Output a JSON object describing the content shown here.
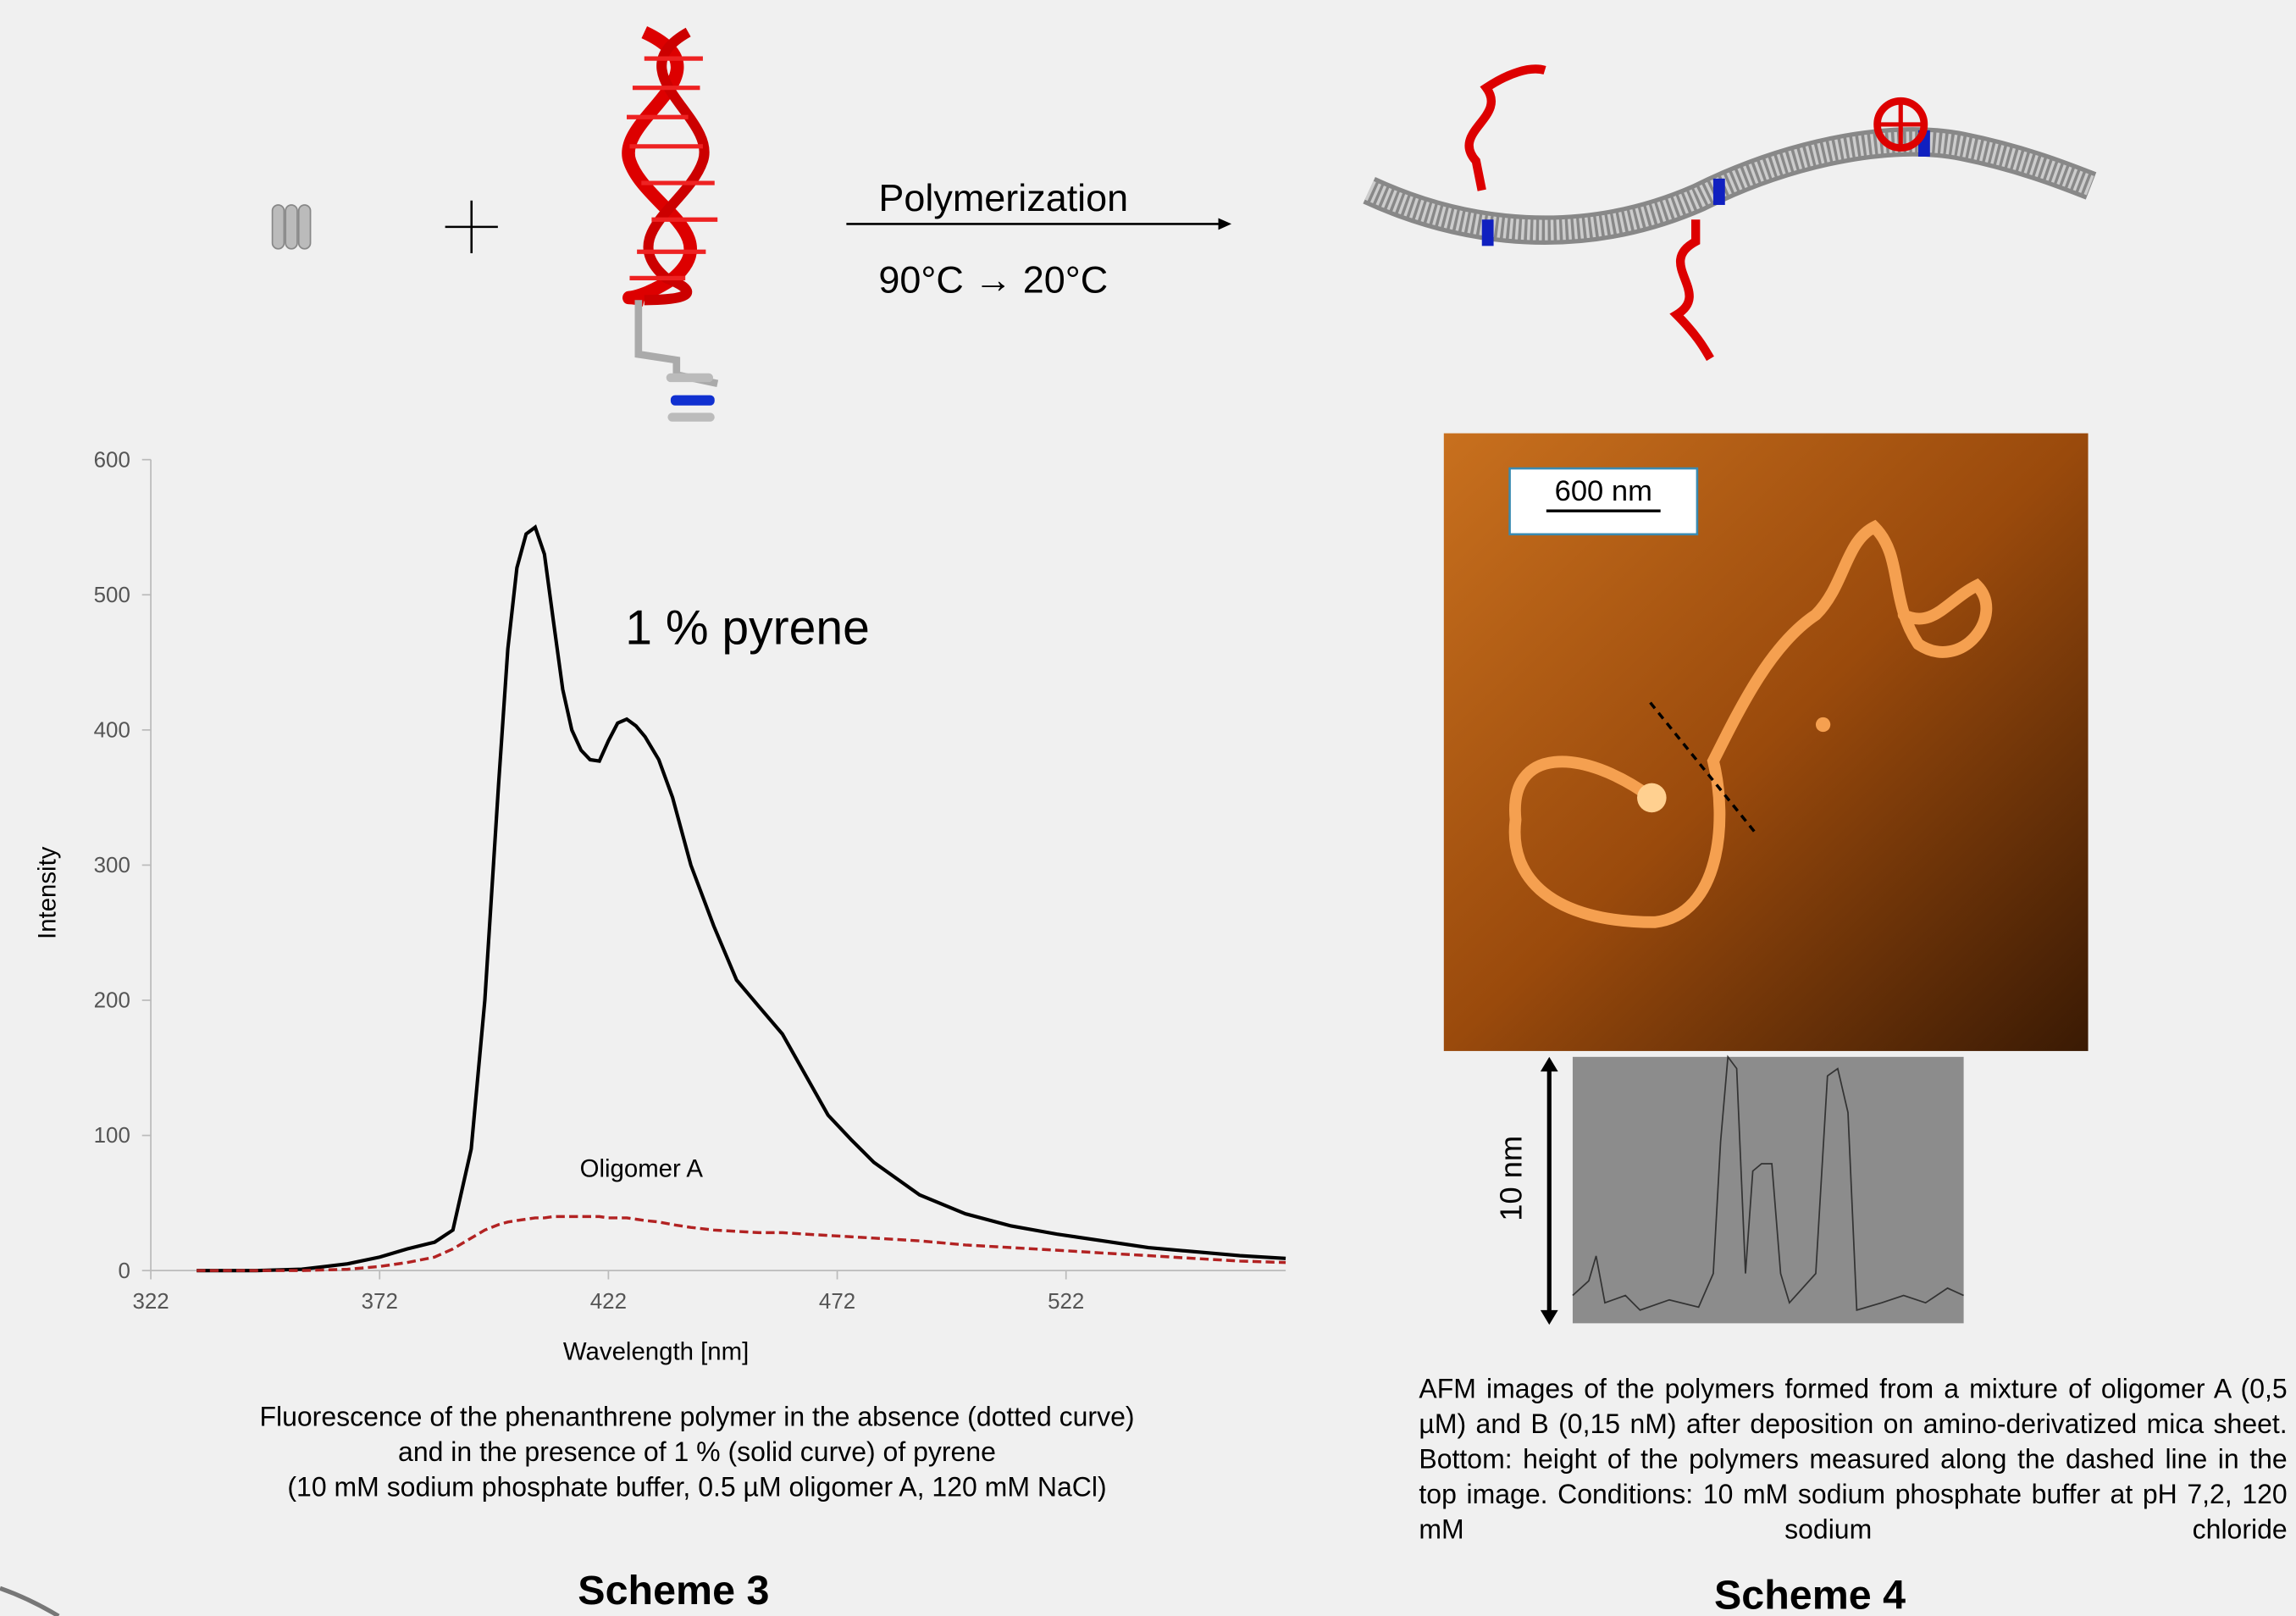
{
  "scheme": {
    "reaction": "Polymerization",
    "conditions": "90°C → 20°C"
  },
  "chart_data": {
    "type": "line",
    "xlabel": "Wavelength [nm]",
    "ylabel": "Intensity",
    "x": [
      332,
      345,
      355,
      365,
      372,
      378,
      384,
      388,
      392,
      395,
      398,
      400,
      402,
      404,
      406,
      408,
      410,
      412,
      414,
      416,
      418,
      420,
      422,
      424,
      426,
      428,
      430,
      433,
      436,
      440,
      445,
      450,
      455,
      460,
      465,
      470,
      475,
      480,
      490,
      500,
      510,
      520,
      530,
      540,
      550,
      560,
      570
    ],
    "series": [
      {
        "name": "1 % pyrene",
        "color": "#000000",
        "dashed": false,
        "values": [
          0,
          0,
          1,
          5,
          10,
          16,
          21,
          30,
          90,
          200,
          360,
          460,
          520,
          545,
          550,
          530,
          480,
          430,
          400,
          385,
          378,
          377,
          392,
          405,
          408,
          403,
          395,
          378,
          350,
          300,
          255,
          215,
          195,
          175,
          145,
          115,
          97,
          80,
          56,
          42,
          33,
          27,
          22,
          17,
          14,
          11,
          9
        ]
      },
      {
        "name": "Oligomer A",
        "color": "#b22222",
        "dashed": true,
        "values": [
          0,
          0,
          0,
          1,
          3,
          6,
          10,
          16,
          24,
          30,
          34,
          36,
          37,
          38,
          39,
          39,
          40,
          40,
          40,
          40,
          40,
          40,
          39,
          39,
          39,
          38,
          37,
          36,
          34,
          32,
          30,
          29,
          28,
          28,
          27,
          26,
          25,
          24,
          22,
          19,
          17,
          15,
          13,
          11,
          9,
          7,
          6
        ]
      }
    ],
    "xlim": [
      322,
      570
    ],
    "xticks": [
      322,
      372,
      422,
      472,
      522
    ],
    "ylim": [
      0,
      600
    ],
    "yticks": [
      0,
      100,
      200,
      300,
      400,
      500,
      600
    ]
  },
  "left_caption": [
    "Fluorescence of the phenanthrene polymer in the absence (dotted curve)",
    "and in the presence of 1 %  (solid curve) of pyrene",
    "(10 mM sodium phosphate buffer, 0.5 µM oligomer A, 120 mM NaCl)"
  ],
  "left_label": "Scheme 3",
  "afm": {
    "scale_bar": "600 nm",
    "height_scale": "10 nm"
  },
  "right_caption": "AFM images of the polymers formed from a mixture of oligomer A (0,5 µM) and B (0,15 nM) after deposition on amino-derivatized mica sheet. Bottom: height of the polymers measured along the dashed line in the top image. Conditions: 10 mM sodium phosphate buffer at pH 7,2, 120 mM sodium chloride",
  "right_label": "Scheme 4"
}
